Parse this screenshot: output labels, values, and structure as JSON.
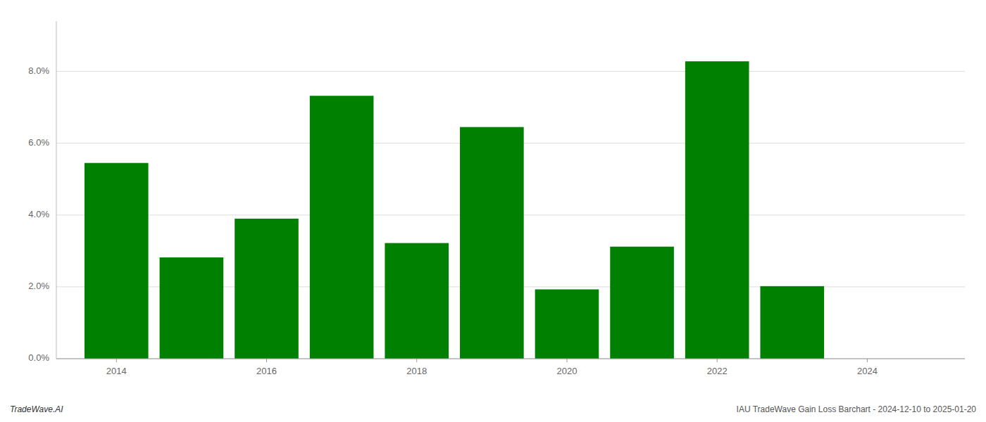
{
  "chart_data": {
    "type": "bar",
    "x": [
      2014,
      2015,
      2016,
      2017,
      2018,
      2019,
      2020,
      2021,
      2022,
      2023
    ],
    "values": [
      0.0545,
      0.0282,
      0.039,
      0.0732,
      0.0322,
      0.0645,
      0.0193,
      0.0312,
      0.0828,
      0.0202
    ],
    "color": "#008000",
    "xlim": [
      2013.2,
      2025.3
    ],
    "xticks": [
      2014,
      2016,
      2018,
      2020,
      2022,
      2024
    ],
    "ylim": [
      0,
      0.094
    ],
    "yticks": [
      {
        "value": 0.0,
        "label": "0.0%"
      },
      {
        "value": 0.02,
        "label": "2.0%"
      },
      {
        "value": 0.04,
        "label": "4.0%"
      },
      {
        "value": 0.06,
        "label": "6.0%"
      },
      {
        "value": 0.08,
        "label": "8.0%"
      }
    ],
    "grid": true,
    "annotations": [
      "TradeWave.AI",
      "IAU TradeWave Gain Loss Barchart - 2024-12-10 to 2025-01-20"
    ]
  }
}
